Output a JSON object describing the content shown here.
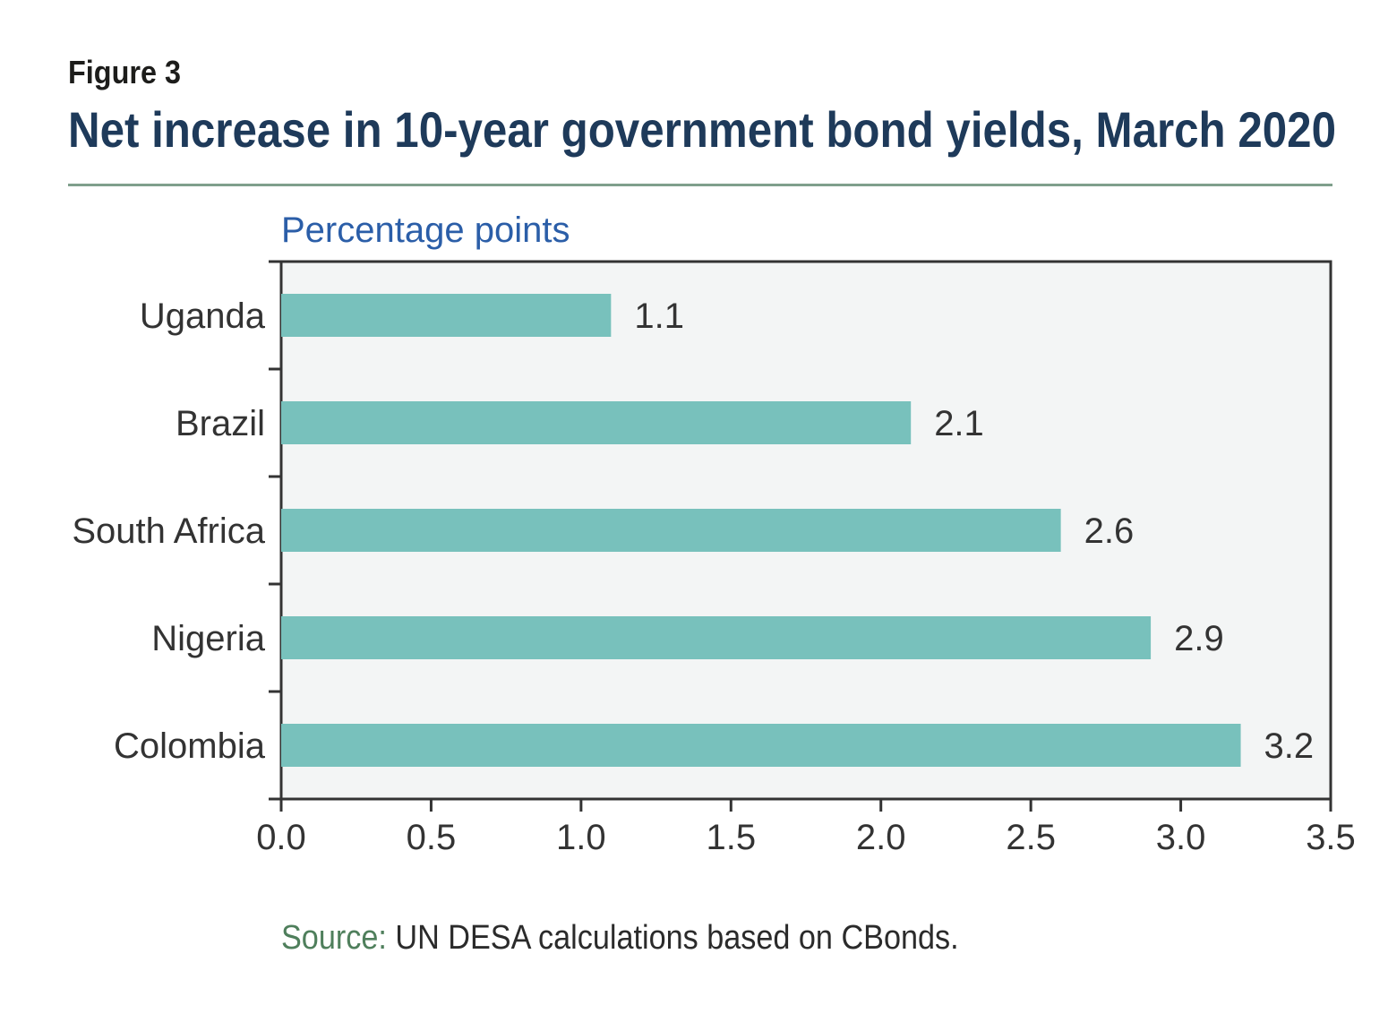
{
  "figure_label": "Figure 3",
  "title": "Net increase in 10-year government bond yields, March 2020",
  "source": {
    "label": "Source:",
    "text": " UN DESA calculations based on CBonds."
  },
  "colors": {
    "bar": "#78c1bc",
    "plot_background": "#f3f5f5",
    "axis": "#333333",
    "unit_label": "#2b5ea8",
    "title": "#1e3a5a",
    "rule": "#7f9f8c"
  },
  "chart_data": {
    "type": "bar",
    "orientation": "horizontal",
    "title": "Net increase in 10-year government bond yields, March 2020",
    "ylabel": "Percentage points",
    "categories": [
      "Uganda",
      "Brazil",
      "South Africa",
      "Nigeria",
      "Colombia"
    ],
    "values": [
      1.1,
      2.1,
      2.6,
      2.9,
      3.2
    ],
    "data_labels": [
      "1.1",
      "2.1",
      "2.6",
      "2.9",
      "3.2"
    ],
    "xlim": [
      0,
      3.5
    ],
    "xticks": [
      0.0,
      0.5,
      1.0,
      1.5,
      2.0,
      2.5,
      3.0,
      3.5
    ],
    "xtick_labels": [
      "0.0",
      "0.5",
      "1.0",
      "1.5",
      "2.0",
      "2.5",
      "3.0",
      "3.5"
    ],
    "grid": false,
    "legend": "none"
  }
}
